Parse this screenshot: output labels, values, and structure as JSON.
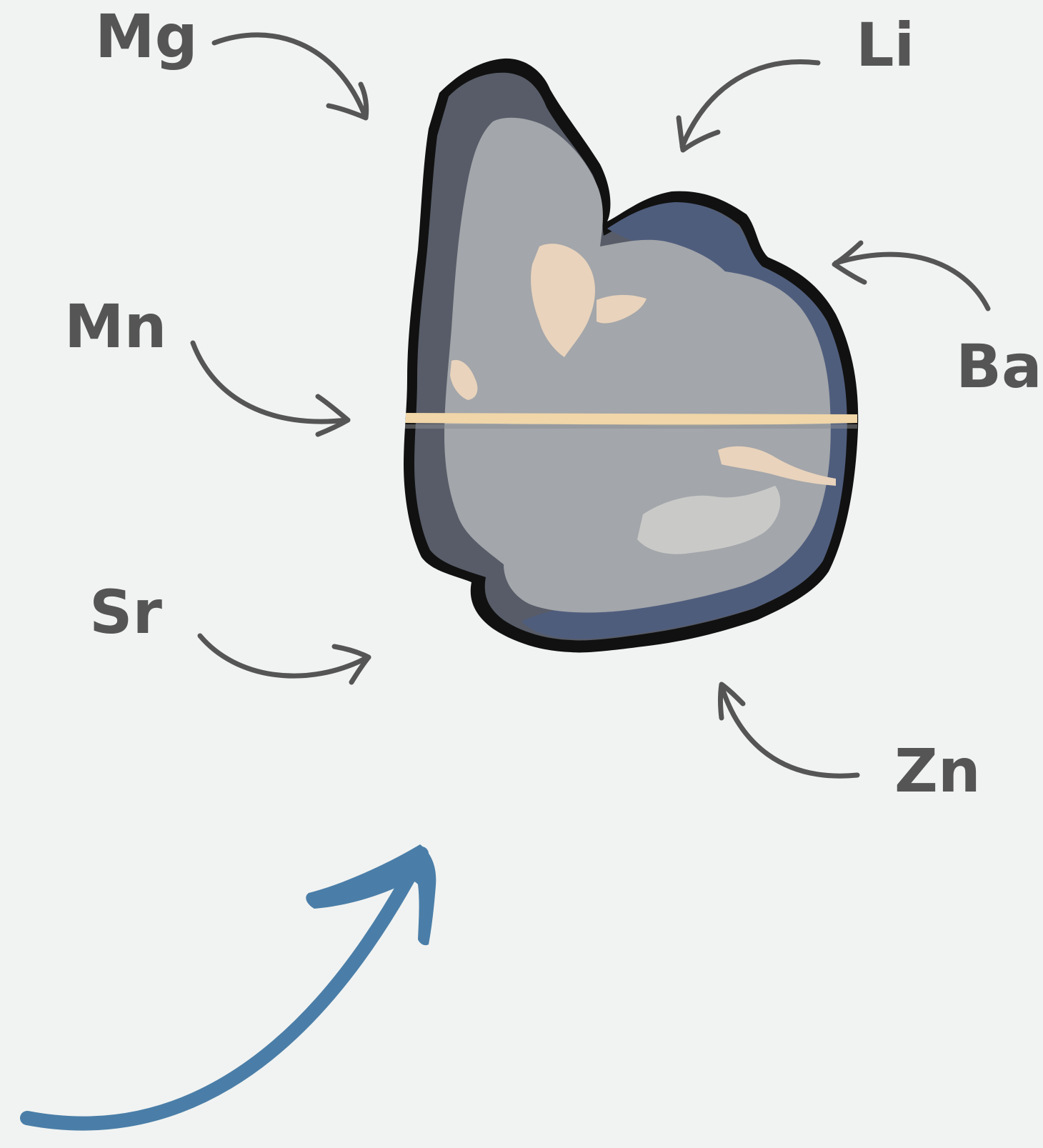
{
  "labels": {
    "mg": "Mg",
    "li": "Li",
    "mn": "Mn",
    "ba": "Ba",
    "sr": "Sr",
    "zn": "Zn"
  },
  "colors": {
    "background": "#f1f3f2",
    "label_text": "#555555",
    "small_arrows": "#555555",
    "large_arrow": "#4a7ea8",
    "specimen_core": "#a3a6aa",
    "specimen_rim": "#575c68",
    "specimen_edge": "#111111",
    "specimen_blue_rim": "#4f5d7d",
    "highlight": "#e9d3bc",
    "band": "#f0d6a8"
  },
  "icons": {
    "specimen": "otolith-cross-section",
    "pointer_arrows": "curved-arrow",
    "large_arrow": "curved-arrow"
  }
}
